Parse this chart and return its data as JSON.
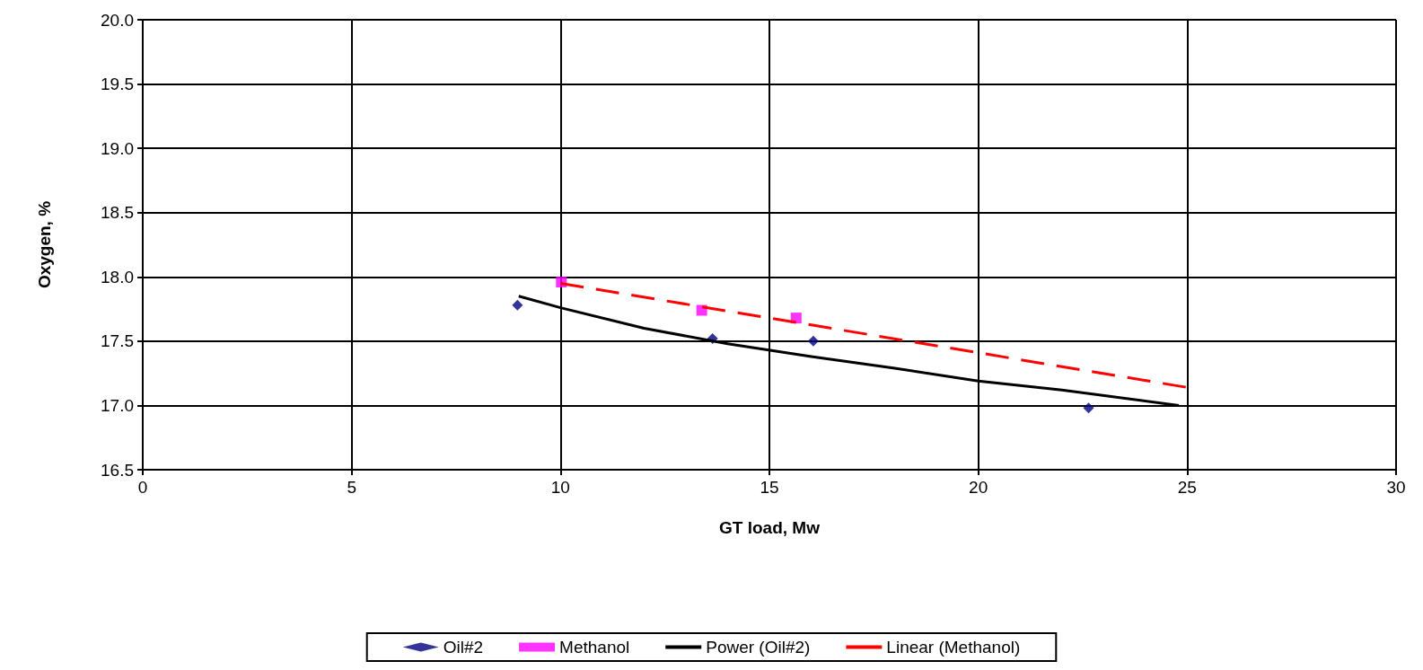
{
  "chart_data": {
    "type": "scatter",
    "xlabel": "GT load, Mw",
    "ylabel": "Oxygen, %",
    "xlim": [
      0,
      30
    ],
    "xticks": [
      0,
      5,
      10,
      15,
      20,
      25,
      30
    ],
    "ylim": [
      16.5,
      20.0
    ],
    "yticks": [
      {
        "value": 16.5,
        "label": "16.5"
      },
      {
        "value": 17,
        "label": "17.0"
      },
      {
        "value": 17.5,
        "label": "17.5"
      },
      {
        "value": 18,
        "label": "18.0"
      },
      {
        "value": 18.5,
        "label": "18.5"
      },
      {
        "value": 19,
        "label": "19.0"
      },
      {
        "value": 19.5,
        "label": "19.5"
      },
      {
        "value": 20,
        "label": "20.0"
      }
    ],
    "grid": true,
    "legend": "bottom",
    "series": [
      {
        "name": "Oil#2",
        "marker": "diamond",
        "color": "#000080",
        "x": [
          8.97,
          13.64,
          16.05,
          22.64
        ],
        "values": [
          17.78,
          17.52,
          17.5,
          16.98
        ]
      },
      {
        "name": "Methanol",
        "marker": "square",
        "color": "#ff00ff",
        "x": [
          10.02,
          13.38,
          15.64
        ],
        "values": [
          17.96,
          17.74,
          17.68
        ]
      },
      {
        "name": "Power (Oil#2)",
        "type": "line",
        "marker": "none",
        "line_style": "solid",
        "color": "#000000",
        "x": [
          9,
          10,
          12,
          14,
          16,
          18,
          20,
          22,
          24.8
        ],
        "values": [
          17.85,
          17.76,
          17.6,
          17.48,
          17.38,
          17.29,
          17.19,
          17.12,
          17.0
        ]
      },
      {
        "name": "Linear (Methanol)",
        "type": "line",
        "marker": "none",
        "line_style": "dashed",
        "color": "#ff0000",
        "x": [
          10,
          25
        ],
        "values": [
          17.95,
          17.14
        ]
      }
    ]
  }
}
